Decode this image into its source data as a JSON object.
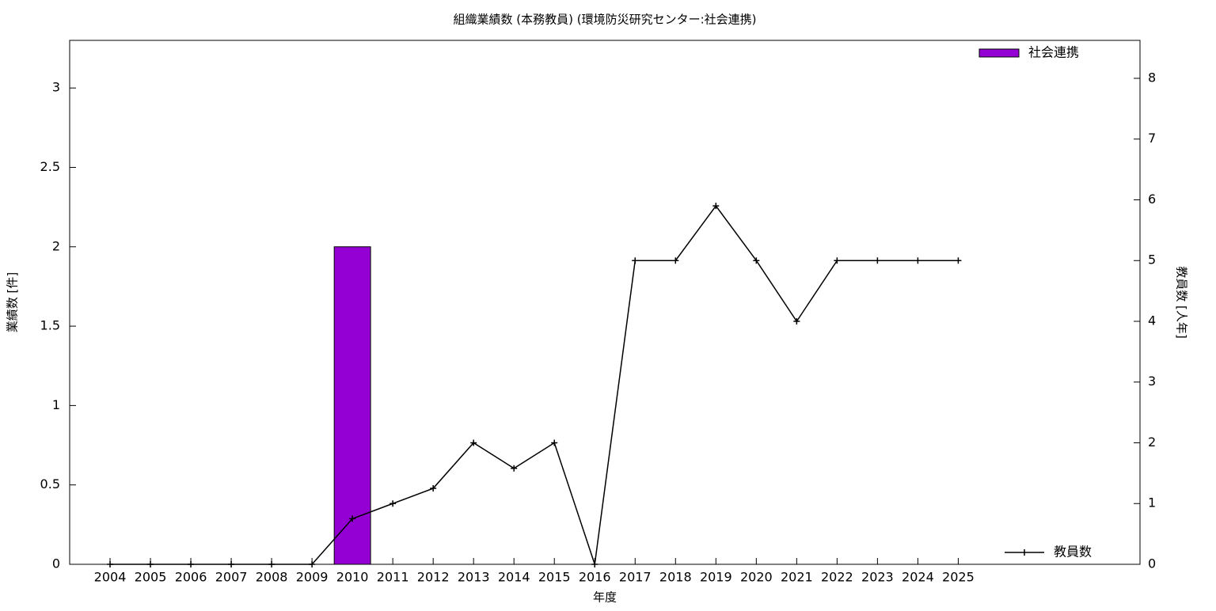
{
  "chart_data": {
    "type": "bar",
    "title": "組織業績数 (本務教員) (環境防災研究センター:社会連携)",
    "x_label": "年度",
    "y_label": "業績数 [件]",
    "y2_label": "教員数 [人年]",
    "x": [
      2004,
      2005,
      2006,
      2007,
      2008,
      2009,
      2010,
      2011,
      2012,
      2013,
      2014,
      2015,
      2016,
      2017,
      2018,
      2019,
      2020,
      2021,
      2022,
      2023,
      2024,
      2025
    ],
    "xlim": [
      2003,
      2029.5
    ],
    "xticks": [
      2004,
      2005,
      2006,
      2007,
      2008,
      2009,
      2010,
      2011,
      2012,
      2013,
      2014,
      2015,
      2016,
      2017,
      2018,
      2019,
      2020,
      2021,
      2022,
      2023,
      2024,
      2025
    ],
    "ylim": [
      0,
      3.3
    ],
    "yticks": [
      0,
      0.5,
      1,
      1.5,
      2,
      2.5,
      3
    ],
    "y2lim": [
      0,
      8.625
    ],
    "y2ticks": [
      0,
      1,
      2,
      3,
      4,
      5,
      6,
      7,
      8
    ],
    "series": [
      {
        "name": "社会連携",
        "type": "bar",
        "color": "#9400d3",
        "legend": "top-right",
        "values": [
          0,
          0,
          0,
          0,
          0,
          0,
          2,
          0,
          0,
          0,
          0,
          0,
          0,
          0,
          0,
          0,
          0,
          0,
          0,
          0,
          0,
          0
        ]
      },
      {
        "name": "教員数",
        "type": "line",
        "axis": "y2",
        "color": "#000000",
        "legend": "bottom-right",
        "values": [
          0,
          0,
          0,
          0,
          0,
          0,
          0.75,
          1,
          1.25,
          2,
          1.58,
          2,
          0,
          5,
          5,
          5.9,
          5,
          4,
          5,
          5,
          5,
          5
        ]
      }
    ]
  }
}
